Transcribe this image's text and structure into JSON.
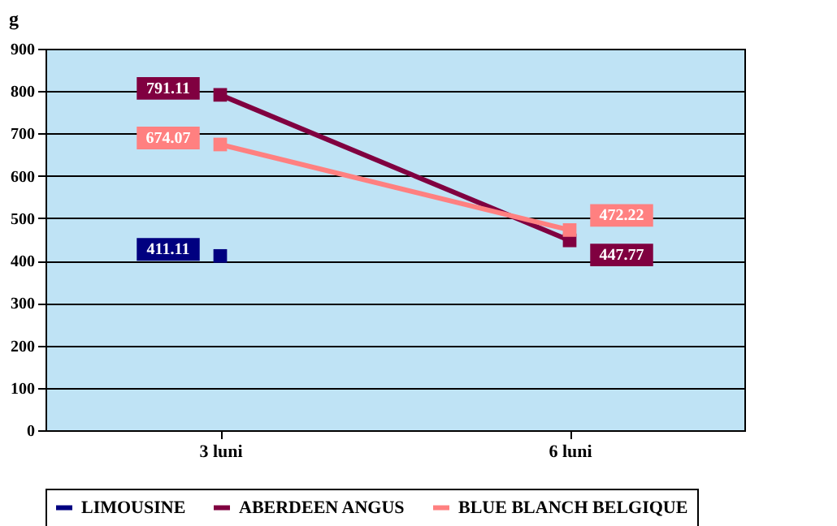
{
  "chart_data": {
    "type": "line",
    "ylabel": "g",
    "categories": [
      "3 luni",
      "6 luni"
    ],
    "series": [
      {
        "name": "LIMOUSINE",
        "color": "#000080",
        "values": [
          411.11,
          null
        ]
      },
      {
        "name": "ABERDEEN ANGUS",
        "color": "#800040",
        "values": [
          791.11,
          447.77
        ]
      },
      {
        "name": "BLUE BLANCH BELGIQUE",
        "color": "#ff8080",
        "values": [
          674.07,
          472.22
        ]
      }
    ],
    "ylim": [
      0,
      900
    ],
    "yticks": [
      0,
      100,
      200,
      300,
      400,
      500,
      600,
      700,
      800,
      900
    ],
    "grid": "y",
    "legend": "bottom",
    "marker": "square",
    "data_labels": true
  }
}
